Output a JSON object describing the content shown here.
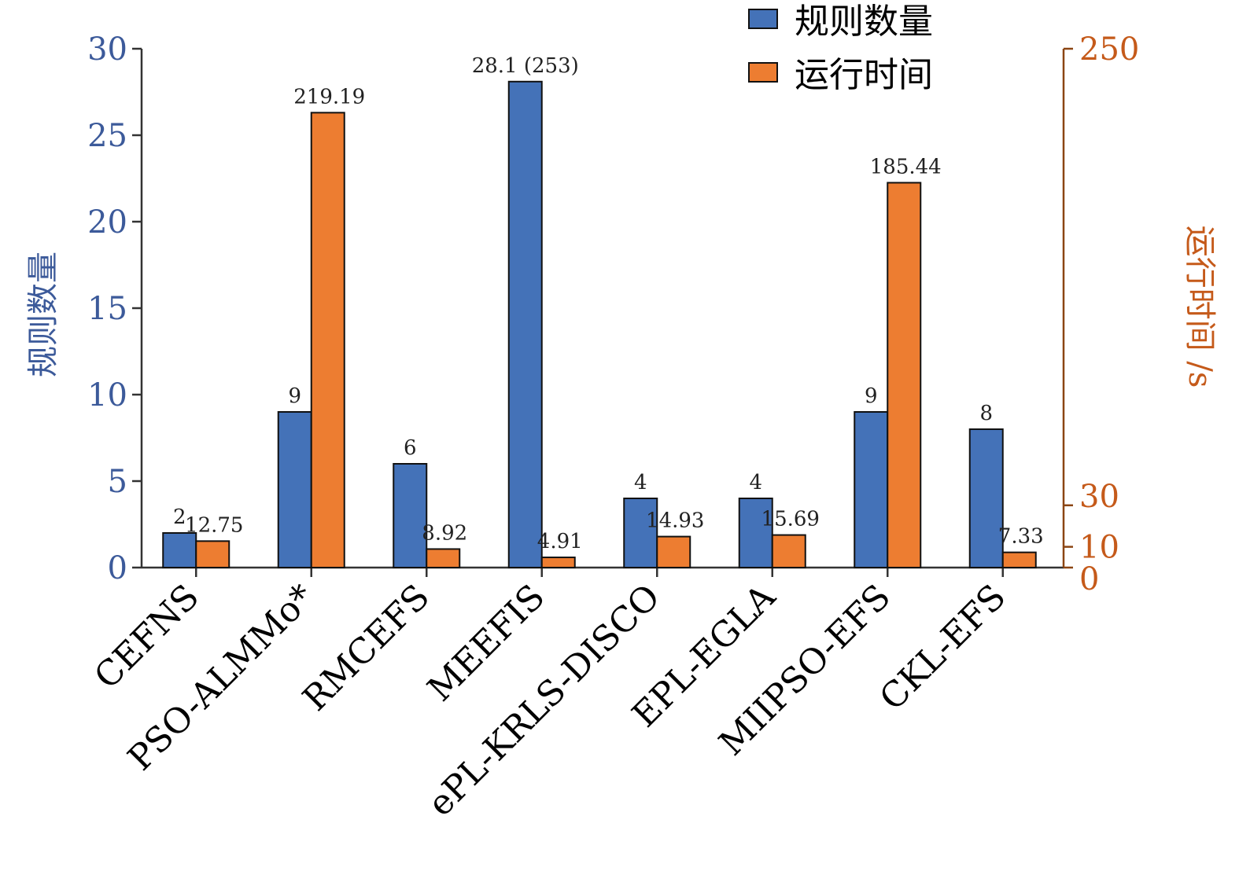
{
  "chart_data": {
    "type": "bar",
    "categories": [
      "CEFNS",
      "PSO-ALMMo*",
      "RMCEFS",
      "MEEFIS",
      "ePL-KRLS-DISCO",
      "EPL-EGLA",
      "MIIPSO-EFS",
      "CKL-EFS"
    ],
    "series": [
      {
        "name": "规则数量",
        "axis": "left",
        "color": "#4472b8",
        "values": [
          2,
          9,
          6,
          28.1,
          4,
          4,
          9,
          8
        ],
        "labels": [
          "2",
          "9",
          "6",
          "28.1 (253)",
          "4",
          "4",
          "9",
          "8"
        ]
      },
      {
        "name": "运行时间",
        "axis": "right",
        "color": "#ed7d31",
        "values": [
          12.75,
          219.19,
          8.92,
          4.91,
          14.93,
          15.69,
          185.44,
          7.33
        ],
        "labels": [
          "12.75",
          "219.19",
          "8.92",
          "4.91",
          "14.93",
          "15.69",
          "185.44",
          "7.33"
        ]
      }
    ],
    "y_left": {
      "label": "规则数量",
      "ylim": [
        0,
        30
      ],
      "ticks": [
        "0",
        "5",
        "10",
        "15",
        "20",
        "25",
        "30"
      ],
      "color": "#3c5a9a"
    },
    "y_right": {
      "label": "运行时间 /s",
      "ylim": [
        0,
        250
      ],
      "ticks": [
        "0",
        "10",
        "30",
        "250"
      ],
      "tick_values": [
        0,
        10,
        30,
        250
      ],
      "color": "#c55a1a",
      "axis_color": "#8b4513"
    },
    "legend_position": "top-right",
    "grid": false
  }
}
